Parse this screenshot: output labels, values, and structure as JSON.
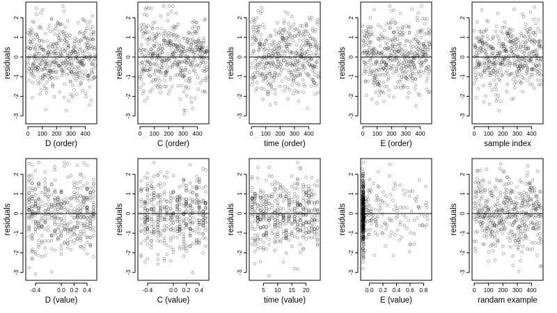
{
  "chart_data": [
    {
      "type": "scatter",
      "xlabel": "D (order)",
      "ylabel": "residuals",
      "x_kind": "order",
      "xlim": [
        -15,
        480
      ],
      "x_ticks": [
        0,
        100,
        200,
        300,
        400
      ],
      "x_tick_labels": [
        "0",
        "100",
        "200",
        "300",
        "400"
      ],
      "ylim": [
        -3.4,
        2.8
      ],
      "y_ticks": [
        -3,
        -2,
        -1,
        0,
        1,
        2
      ],
      "y_tick_labels": [
        "-3",
        "-2",
        "-1",
        "0",
        "1",
        "2"
      ],
      "hline": 0,
      "n": 470,
      "seed": 11
    },
    {
      "type": "scatter",
      "xlabel": "C (order)",
      "ylabel": "residuals",
      "x_kind": "order",
      "xlim": [
        -15,
        480
      ],
      "x_ticks": [
        0,
        100,
        200,
        300,
        400
      ],
      "x_tick_labels": [
        "0",
        "100",
        "200",
        "300",
        "400"
      ],
      "ylim": [
        -3.4,
        2.8
      ],
      "y_ticks": [
        -3,
        -2,
        -1,
        0,
        1,
        2
      ],
      "y_tick_labels": [
        "-3",
        "-2",
        "-1",
        "0",
        "1",
        "2"
      ],
      "hline": 0,
      "n": 470,
      "seed": 23
    },
    {
      "type": "scatter",
      "xlabel": "time (order)",
      "ylabel": "residuals",
      "x_kind": "order",
      "xlim": [
        -15,
        480
      ],
      "x_ticks": [
        0,
        100,
        200,
        300,
        400
      ],
      "x_tick_labels": [
        "0",
        "100",
        "200",
        "300",
        "400"
      ],
      "ylim": [
        -3.4,
        2.8
      ],
      "y_ticks": [
        -3,
        -2,
        -1,
        0,
        1,
        2
      ],
      "y_tick_labels": [
        "-3",
        "-2",
        "-1",
        "0",
        "1",
        "2"
      ],
      "hline": 0,
      "n": 470,
      "seed": 37
    },
    {
      "type": "scatter",
      "xlabel": "E (order)",
      "ylabel": "residuals",
      "x_kind": "order",
      "xlim": [
        -15,
        480
      ],
      "x_ticks": [
        0,
        100,
        200,
        300,
        400
      ],
      "x_tick_labels": [
        "0",
        "100",
        "200",
        "300",
        "400"
      ],
      "ylim": [
        -3.4,
        2.8
      ],
      "y_ticks": [
        -3,
        -2,
        -1,
        0,
        1,
        2
      ],
      "y_tick_labels": [
        "-3",
        "-2",
        "-1",
        "0",
        "1",
        "2"
      ],
      "hline": 0,
      "n": 470,
      "seed": 41
    },
    {
      "type": "scatter",
      "xlabel": "sample index",
      "ylabel": "residuals",
      "x_kind": "order",
      "xlim": [
        -15,
        480
      ],
      "x_ticks": [
        0,
        100,
        200,
        300,
        400
      ],
      "x_tick_labels": [
        "0",
        "100",
        "200",
        "300",
        "400"
      ],
      "ylim": [
        -3.4,
        2.8
      ],
      "y_ticks": [
        -3,
        -2,
        -1,
        0,
        1,
        2
      ],
      "y_tick_labels": [
        "-3",
        "-2",
        "-1",
        "0",
        "1",
        "2"
      ],
      "hline": 0,
      "n": 470,
      "seed": 53
    },
    {
      "type": "scatter",
      "xlabel": "D (value)",
      "ylabel": "residuals",
      "x_kind": "columns",
      "x_levels": [
        -0.5,
        -0.45,
        -0.4,
        -0.35,
        -0.3,
        -0.25,
        -0.2,
        -0.15,
        -0.1,
        -0.05,
        0.0,
        0.05,
        0.1,
        0.15,
        0.2,
        0.25,
        0.3,
        0.35,
        0.4,
        0.45,
        0.5
      ],
      "xlim": [
        -0.55,
        0.55
      ],
      "x_ticks": [
        -0.4,
        0.0,
        0.2,
        0.4
      ],
      "x_tick_labels": [
        "-0.4",
        "0.0",
        "0.2",
        "0.4"
      ],
      "ylim": [
        -3.4,
        2.8
      ],
      "y_ticks": [
        -3,
        -2,
        -1,
        0,
        1,
        2
      ],
      "y_tick_labels": [
        "-3",
        "-2",
        "-1",
        "0",
        "1",
        "2"
      ],
      "hline": 0,
      "n": 470,
      "seed": 67
    },
    {
      "type": "scatter",
      "xlabel": "C (value)",
      "ylabel": "residuals",
      "x_kind": "columns",
      "x_levels": [
        -0.5,
        -0.44,
        -0.4,
        -0.34,
        -0.3,
        -0.24,
        -0.2,
        -0.14,
        -0.1,
        -0.04,
        0.0,
        0.06,
        0.1,
        0.16,
        0.2,
        0.26,
        0.3,
        0.36,
        0.4,
        0.46,
        0.5
      ],
      "xlim": [
        -0.55,
        0.55
      ],
      "x_ticks": [
        -0.4,
        0.0,
        0.2,
        0.4
      ],
      "x_tick_labels": [
        "-0.4",
        "0.0",
        "0.2",
        "0.4"
      ],
      "ylim": [
        -3.4,
        2.8
      ],
      "y_ticks": [
        -3,
        -2,
        -1,
        0,
        1,
        2
      ],
      "y_tick_labels": [
        "-3",
        "-2",
        "-1",
        "0",
        "1",
        "2"
      ],
      "hline": 0,
      "n": 470,
      "seed": 71
    },
    {
      "type": "scatter",
      "xlabel": "time (value)",
      "ylabel": "residuals",
      "x_kind": "columns",
      "x_levels": [
        1,
        2,
        3,
        4,
        5,
        6,
        7,
        8,
        9,
        10,
        11,
        12,
        13,
        14,
        15,
        16,
        17,
        18,
        19,
        20,
        21,
        22,
        23,
        24
      ],
      "xlim": [
        0,
        25
      ],
      "x_ticks": [
        5,
        10,
        15,
        20
      ],
      "x_tick_labels": [
        "5",
        "10",
        "15",
        "20"
      ],
      "ylim": [
        -3.4,
        2.8
      ],
      "y_ticks": [
        -3,
        -2,
        -1,
        0,
        1,
        2
      ],
      "y_tick_labels": [
        "-3",
        "-2",
        "-1",
        "0",
        "1",
        "2"
      ],
      "hline": 0,
      "n": 470,
      "seed": 83
    },
    {
      "type": "scatter",
      "xlabel": "E (value)",
      "ylabel": "residuals",
      "x_kind": "skewed",
      "xlim": [
        -0.13,
        0.92
      ],
      "x_ticks": [
        0.0,
        0.2,
        0.4,
        0.6,
        0.8
      ],
      "x_tick_labels": [
        "0.0",
        "0.2",
        "0.4",
        "0.6",
        "0.8"
      ],
      "ylim": [
        -3.4,
        2.8
      ],
      "y_ticks": [
        -3,
        -2,
        -1,
        0,
        1,
        2
      ],
      "y_tick_labels": [
        "-3",
        "-2",
        "-1",
        "0",
        "1",
        "2"
      ],
      "hline": 0,
      "n": 470,
      "seed": 97
    },
    {
      "type": "scatter",
      "xlabel": "randam example",
      "ylabel": "residuals",
      "x_kind": "order",
      "xlim": [
        -15,
        480
      ],
      "x_ticks": [
        0,
        100,
        200,
        300,
        400
      ],
      "x_tick_labels": [
        "0",
        "100",
        "200",
        "300",
        "400"
      ],
      "ylim": [
        -3.4,
        2.8
      ],
      "y_ticks": [
        -3,
        -2,
        -1,
        0,
        1,
        2
      ],
      "y_tick_labels": [
        "-3",
        "-2",
        "-1",
        "0",
        "1",
        "2"
      ],
      "hline": 0,
      "n": 470,
      "seed": 101
    }
  ]
}
